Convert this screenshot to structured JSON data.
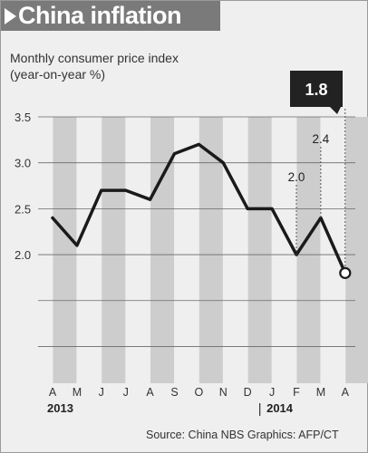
{
  "header": {
    "title": "China inflation"
  },
  "subtitle": {
    "line1": "Monthly consumer price index",
    "line2": "(year-on-year %)"
  },
  "footer": {
    "source": "Source: China NBS   Graphics: AFP/CT"
  },
  "colors": {
    "line": "#1a1a1a",
    "band": "#cdcdcd",
    "background": "#efefef",
    "header": "#7a7a7a",
    "callout": "#222222"
  },
  "icons": {
    "title_marker": "play-arrow-icon"
  },
  "chart_data": {
    "type": "line",
    "title": "China inflation",
    "subtitle": "Monthly consumer price index (year-on-year %)",
    "x": [
      "A",
      "M",
      "J",
      "J",
      "A",
      "S",
      "O",
      "N",
      "D",
      "J",
      "F",
      "M",
      "A"
    ],
    "year_labels": [
      {
        "label": "2013",
        "at": 0
      },
      {
        "label": "2014",
        "at": 9
      }
    ],
    "series": [
      {
        "values": [
          2.4,
          2.1,
          2.7,
          2.7,
          2.6,
          3.1,
          3.2,
          3.0,
          2.5,
          2.5,
          2.0,
          2.4,
          1.8
        ]
      }
    ],
    "annotations": [
      {
        "index": 10,
        "label": "2.0"
      },
      {
        "index": 11,
        "label": "2.4"
      },
      {
        "index": 12,
        "label": "1.8",
        "highlight": true
      }
    ],
    "y_ticks": [
      2.0,
      2.5,
      3.0,
      3.5
    ],
    "y_tick_labels": [
      "2.0",
      "2.5",
      "3.0",
      "3.5"
    ],
    "ylim": [
      0.6,
      3.5
    ],
    "grid": true,
    "legend": "none"
  }
}
